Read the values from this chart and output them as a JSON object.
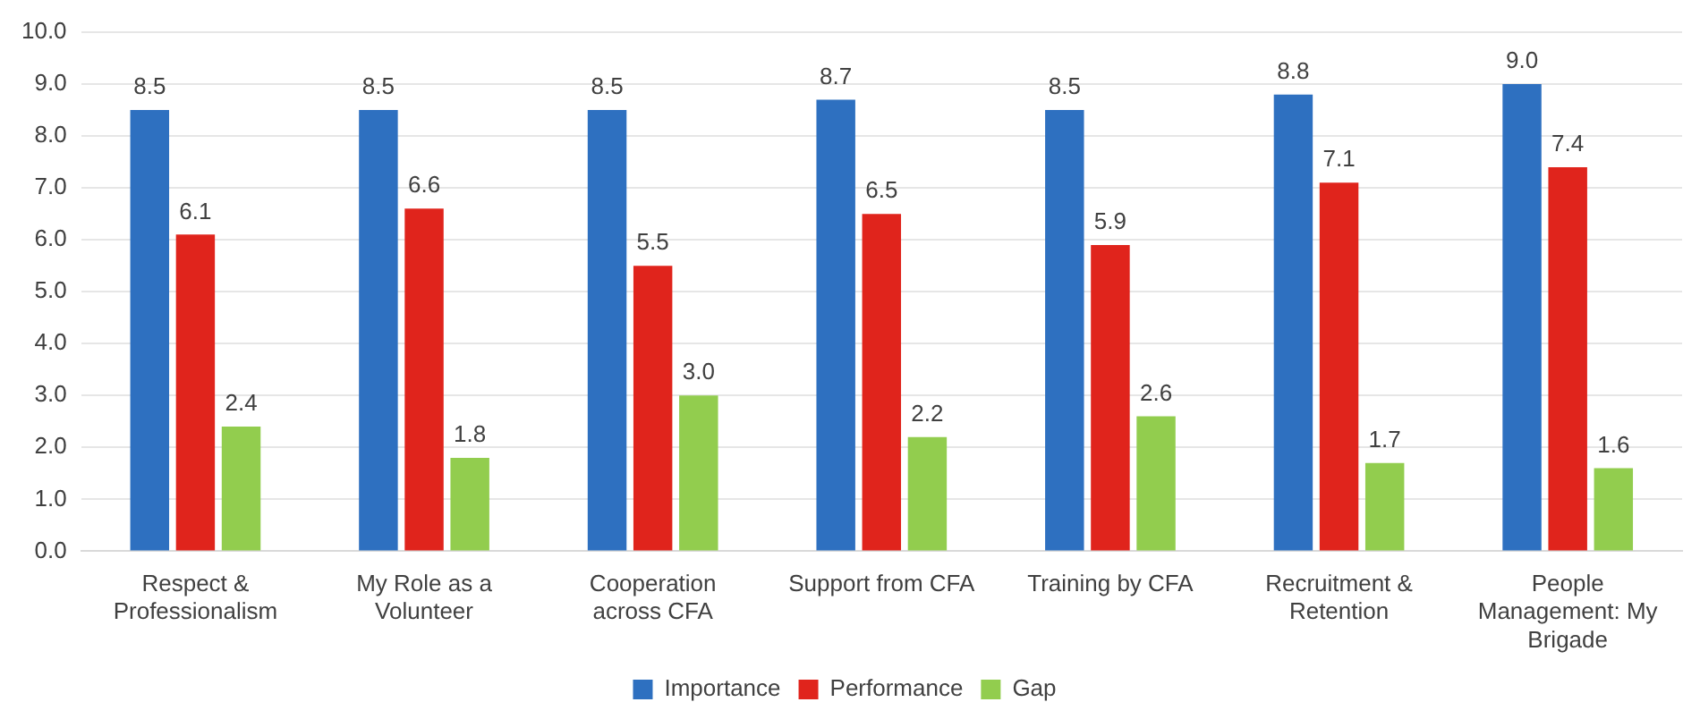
{
  "chart_data": {
    "type": "bar",
    "categories": [
      "Respect & Professionalism",
      "My Role as a Volunteer",
      "Cooperation across CFA",
      "Support from CFA",
      "Training by CFA",
      "Recruitment & Retention",
      "People Management: My Brigade"
    ],
    "series": [
      {
        "name": "Importance",
        "color": "#2e70c0",
        "values": [
          8.5,
          8.5,
          8.5,
          8.7,
          8.5,
          8.8,
          9.0
        ],
        "value_labels": [
          "8.5",
          "8.5",
          "8.5",
          "8.7",
          "8.5",
          "8.8",
          "9.0"
        ]
      },
      {
        "name": "Performance",
        "color": "#e0241c",
        "values": [
          6.1,
          6.6,
          5.5,
          6.5,
          5.9,
          7.1,
          7.4
        ],
        "value_labels": [
          "6.1",
          "6.6",
          "5.5",
          "6.5",
          "5.9",
          "7.1",
          "7.4"
        ]
      },
      {
        "name": "Gap",
        "color": "#92cd4e",
        "values": [
          2.4,
          1.8,
          3.0,
          2.2,
          2.6,
          1.7,
          1.6
        ],
        "value_labels": [
          "2.4",
          "1.8",
          "3.0",
          "2.2",
          "2.6",
          "1.7",
          "1.6"
        ]
      }
    ],
    "ylim": [
      0,
      10
    ],
    "yticks": [
      {
        "value": 0,
        "label": "0.0"
      },
      {
        "value": 1,
        "label": "1.0"
      },
      {
        "value": 2,
        "label": "2.0"
      },
      {
        "value": 3,
        "label": "3.0"
      },
      {
        "value": 4,
        "label": "4.0"
      },
      {
        "value": 5,
        "label": "5.0"
      },
      {
        "value": 6,
        "label": "6.0"
      },
      {
        "value": 7,
        "label": "7.0"
      },
      {
        "value": 8,
        "label": "8.0"
      },
      {
        "value": 9,
        "label": "9.0"
      },
      {
        "value": 10,
        "label": "10.0"
      }
    ],
    "grid": "y",
    "legend": "bottom"
  }
}
